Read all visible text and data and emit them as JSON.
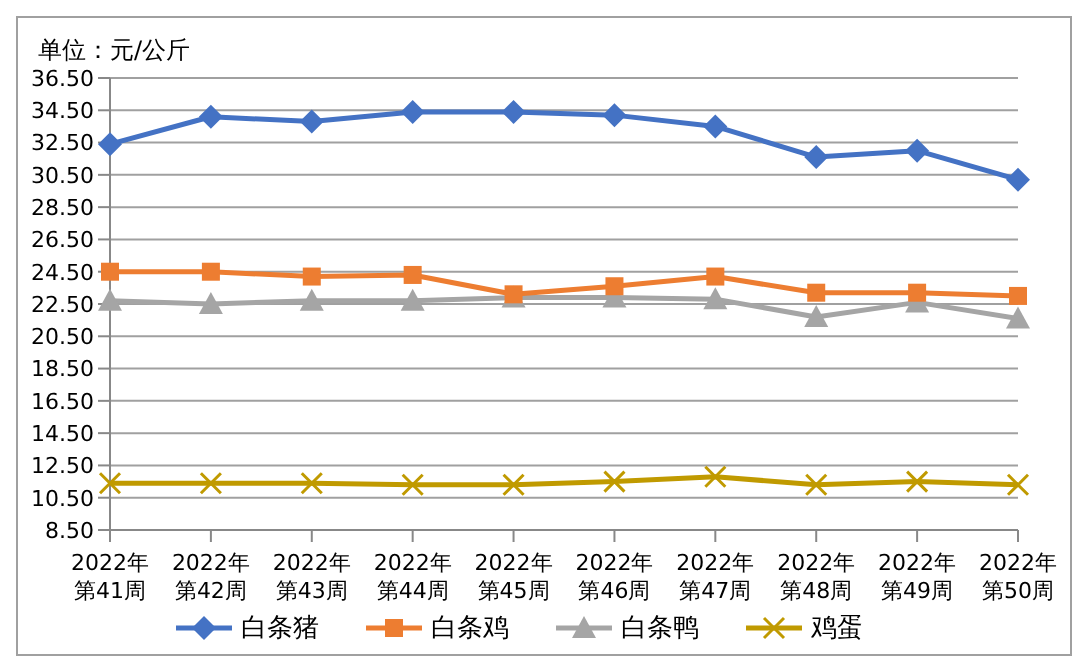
{
  "chart_data": {
    "type": "line",
    "ylabel": "单位：元/公斤",
    "categories": [
      "2022年第41周",
      "2022年第42周",
      "2022年第43周",
      "2022年第44周",
      "2022年第45周",
      "2022年第46周",
      "2022年第47周",
      "2022年第48周",
      "2022年第49周",
      "2022年第50周"
    ],
    "series": [
      {
        "name": "白条猪",
        "color": "#4472c4",
        "marker": "diamond",
        "values": [
          32.4,
          34.1,
          33.8,
          34.4,
          34.4,
          34.2,
          33.5,
          31.6,
          32.0,
          30.2
        ]
      },
      {
        "name": "白条鸡",
        "color": "#ed7d31",
        "marker": "square",
        "values": [
          24.5,
          24.5,
          24.2,
          24.3,
          23.1,
          23.6,
          24.2,
          23.2,
          23.2,
          23.0
        ]
      },
      {
        "name": "白条鸭",
        "color": "#a5a5a5",
        "marker": "triangle",
        "values": [
          22.7,
          22.5,
          22.7,
          22.7,
          22.9,
          22.9,
          22.8,
          21.7,
          22.6,
          21.6
        ]
      },
      {
        "name": "鸡蛋",
        "color": "#c09a00",
        "marker": "cross",
        "values": [
          11.4,
          11.4,
          11.4,
          11.3,
          11.3,
          11.5,
          11.8,
          11.3,
          11.5,
          11.3
        ]
      }
    ],
    "ylim": [
      8.5,
      36.5
    ],
    "yticks": [
      {
        "value": 8.5,
        "label": "8.50"
      },
      {
        "value": 10.5,
        "label": "10.50"
      },
      {
        "value": 12.5,
        "label": "12.50"
      },
      {
        "value": 14.5,
        "label": "14.50"
      },
      {
        "value": 16.5,
        "label": "16.50"
      },
      {
        "value": 18.5,
        "label": "18.50"
      },
      {
        "value": 20.5,
        "label": "20.50"
      },
      {
        "value": 22.5,
        "label": "22.50"
      },
      {
        "value": 24.5,
        "label": "24.50"
      },
      {
        "value": 26.5,
        "label": "26.50"
      },
      {
        "value": 28.5,
        "label": "28.50"
      },
      {
        "value": 30.5,
        "label": "30.50"
      },
      {
        "value": 32.5,
        "label": "32.50"
      },
      {
        "value": 34.5,
        "label": "34.50"
      },
      {
        "value": 36.5,
        "label": "36.50"
      }
    ],
    "grid": "y",
    "legend": "bottom"
  }
}
